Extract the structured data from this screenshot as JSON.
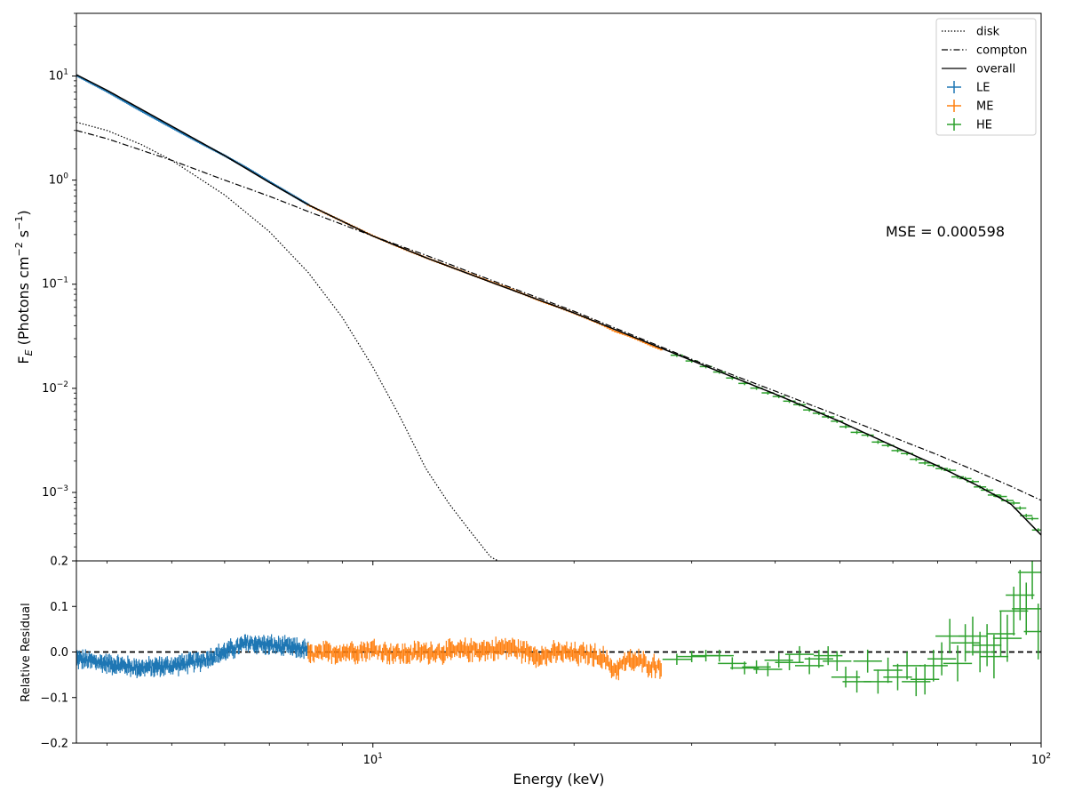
{
  "chart_data": [
    {
      "type": "line",
      "panel": "spectrum",
      "ylabel": "F_E (Photons cm^-2 s^-1)",
      "xscale": "log",
      "yscale": "log",
      "xlim": [
        3.6,
        100
      ],
      "ylim": [
        0.00022,
        40
      ],
      "x_ticks": [
        {
          "value": 10,
          "base": "10",
          "exp": "1"
        },
        {
          "value": 100,
          "base": "10",
          "exp": "2"
        }
      ],
      "y_ticks": [
        {
          "value": 0.001,
          "base": "10",
          "exp": "−3"
        },
        {
          "value": 0.01,
          "base": "10",
          "exp": "−2"
        },
        {
          "value": 0.1,
          "base": "10",
          "exp": "−1"
        },
        {
          "value": 1,
          "base": "10",
          "exp": "0"
        },
        {
          "value": 10,
          "base": "10",
          "exp": "1"
        }
      ],
      "ylabel_parts": {
        "f": "F",
        "sub": "E",
        "unit_open": " (Photons cm",
        "exp1": "−2",
        "mid": " s",
        "exp2": "−1",
        "close": ")"
      },
      "annotation": "MSE = 0.000598",
      "legend": {
        "position": "upper right",
        "entries": [
          {
            "label": "disk",
            "style": "dotted",
            "color": "#000000"
          },
          {
            "label": "compton",
            "style": "dashdot",
            "color": "#000000"
          },
          {
            "label": "overall",
            "style": "solid",
            "color": "#000000"
          },
          {
            "label": "LE",
            "style": "errorbar",
            "color": "#1f77b4"
          },
          {
            "label": "ME",
            "style": "errorbar",
            "color": "#ff7f0e"
          },
          {
            "label": "HE",
            "style": "errorbar",
            "color": "#2ca02c"
          }
        ]
      },
      "series": [
        {
          "name": "disk",
          "style": "dotted",
          "color": "#000000",
          "x": [
            3.6,
            4,
            4.5,
            5,
            6,
            7,
            8,
            9,
            10,
            11,
            12,
            13,
            14,
            15,
            15.4
          ],
          "y": [
            3.6,
            3.0,
            2.2,
            1.55,
            0.72,
            0.32,
            0.13,
            0.048,
            0.016,
            0.0052,
            0.0017,
            0.00078,
            0.00042,
            0.00024,
            0.00022
          ]
        },
        {
          "name": "compton",
          "style": "dashdot",
          "color": "#000000",
          "x": [
            3.6,
            4,
            5,
            6,
            7,
            8,
            10,
            12,
            15,
            20,
            30,
            40,
            50,
            60,
            70,
            80,
            90,
            100
          ],
          "y": [
            3.0,
            2.5,
            1.55,
            1.0,
            0.7,
            0.5,
            0.29,
            0.19,
            0.11,
            0.055,
            0.019,
            0.0094,
            0.0054,
            0.0034,
            0.0023,
            0.0016,
            0.00115,
            0.00084
          ]
        },
        {
          "name": "overall",
          "style": "solid",
          "color": "#000000",
          "x": [
            3.6,
            4,
            5,
            6,
            7,
            8,
            10,
            12,
            15,
            20,
            30,
            40,
            50,
            60,
            70,
            80,
            90,
            100
          ],
          "y": [
            10.3,
            7.3,
            3.3,
            1.72,
            0.95,
            0.58,
            0.29,
            0.18,
            0.105,
            0.053,
            0.0185,
            0.0088,
            0.0048,
            0.0028,
            0.0018,
            0.00118,
            0.00078,
            0.00039
          ]
        },
        {
          "name": "LE",
          "type": "errorbar",
          "color": "#1f77b4",
          "x_range": [
            3.6,
            8.0
          ]
        },
        {
          "name": "ME",
          "type": "errorbar",
          "color": "#ff7f0e",
          "x_range": [
            8.0,
            27.0
          ]
        },
        {
          "name": "HE",
          "type": "errorbar",
          "color": "#2ca02c",
          "x_range": [
            28.0,
            100.0
          ]
        }
      ]
    },
    {
      "type": "line",
      "panel": "residual",
      "xlabel": "Energy (keV)",
      "ylabel": "Relative Residual",
      "xscale": "log",
      "xlim": [
        3.6,
        100
      ],
      "ylim": [
        -0.2,
        0.2
      ],
      "y_ticks": [
        {
          "value": 0.2,
          "label": "0.2"
        },
        {
          "value": 0.1,
          "label": "0.1"
        },
        {
          "value": 0.0,
          "label": "0.0"
        },
        {
          "value": -0.1,
          "label": "−0.1"
        },
        {
          "value": -0.2,
          "label": "−0.2"
        }
      ],
      "zero_line": {
        "value": 0.0,
        "style": "dashed",
        "color": "#000000"
      },
      "series": [
        {
          "name": "LE",
          "color": "#1f77b4",
          "x": [
            3.6,
            4.0,
            4.5,
            5.0,
            5.5,
            6.0,
            6.5,
            7.0,
            7.5,
            8.0
          ],
          "y": [
            -0.015,
            -0.025,
            -0.035,
            -0.03,
            -0.02,
            0.0,
            0.02,
            0.015,
            0.01,
            0.005
          ],
          "err": 0.012
        },
        {
          "name": "ME",
          "color": "#ff7f0e",
          "x": [
            8.0,
            9.0,
            10.0,
            11.0,
            12.0,
            13.0,
            14.0,
            15.0,
            16.0,
            17.0,
            18.0,
            19.0,
            20.0,
            21.0,
            22.0,
            23.0,
            24.0,
            25.0,
            26.0,
            27.0
          ],
          "y": [
            -0.005,
            0.0,
            0.005,
            -0.005,
            0.0,
            0.0,
            0.005,
            0.005,
            0.01,
            0.0,
            -0.01,
            0.0,
            -0.005,
            -0.005,
            -0.01,
            -0.04,
            -0.02,
            -0.02,
            -0.03,
            -0.03
          ],
          "err": 0.015
        },
        {
          "name": "HE",
          "color": "#2ca02c",
          "x": [
            28.5,
            30,
            31.5,
            33,
            34.5,
            36,
            37.5,
            39,
            40.5,
            42,
            43.5,
            45,
            46.5,
            48,
            49.5,
            51,
            53,
            55,
            57,
            59,
            61,
            63,
            65,
            67,
            69,
            71,
            73,
            75,
            77,
            79,
            81,
            83,
            85,
            87,
            89,
            91,
            93,
            95,
            97,
            99
          ],
          "y": [
            -0.016,
            -0.01,
            -0.008,
            -0.008,
            -0.025,
            -0.035,
            -0.033,
            -0.038,
            -0.018,
            -0.023,
            -0.005,
            -0.03,
            -0.015,
            -0.008,
            -0.02,
            -0.055,
            -0.065,
            -0.02,
            -0.065,
            -0.04,
            -0.055,
            -0.03,
            -0.065,
            -0.06,
            -0.03,
            -0.015,
            0.035,
            -0.025,
            0.02,
            0.035,
            0.0,
            0.015,
            -0.01,
            0.04,
            0.03,
            0.09,
            0.125,
            0.095,
            0.175,
            0.045
          ],
          "err": 0.035
        }
      ]
    }
  ]
}
